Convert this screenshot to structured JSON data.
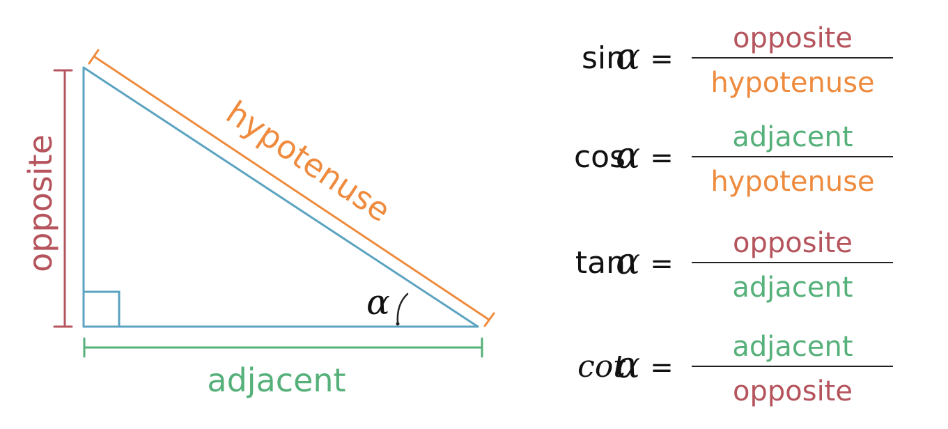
{
  "colors": {
    "triangle": "#5ba3c0",
    "opposite": "#b5545c",
    "adjacent": "#55b07a",
    "hypotenuse": "#ee8b3e",
    "text": "#111111",
    "rule": "#222222"
  },
  "triangle": {
    "opposite_label": "opposite",
    "adjacent_label": "adjacent",
    "hypotenuse_label": "hypotenuse",
    "angle_symbol": "α",
    "right_angle": true
  },
  "formulas": [
    {
      "func": "sin",
      "symbol": "α",
      "equals": "=",
      "numerator": "opposite",
      "numerator_role": "opposite",
      "denominator": "hypotenuse",
      "denominator_role": "hypotenuse"
    },
    {
      "func": "cos",
      "symbol": "α",
      "equals": "=",
      "numerator": "adjacent",
      "numerator_role": "adjacent",
      "denominator": "hypotenuse",
      "denominator_role": "hypotenuse"
    },
    {
      "func": "tan",
      "symbol": "α",
      "equals": "=",
      "numerator": "opposite",
      "numerator_role": "opposite",
      "denominator": "adjacent",
      "denominator_role": "adjacent"
    },
    {
      "func": "cot",
      "symbol": "α",
      "equals": "=",
      "numerator": "adjacent",
      "numerator_role": "adjacent",
      "denominator": "opposite",
      "denominator_role": "opposite"
    }
  ]
}
